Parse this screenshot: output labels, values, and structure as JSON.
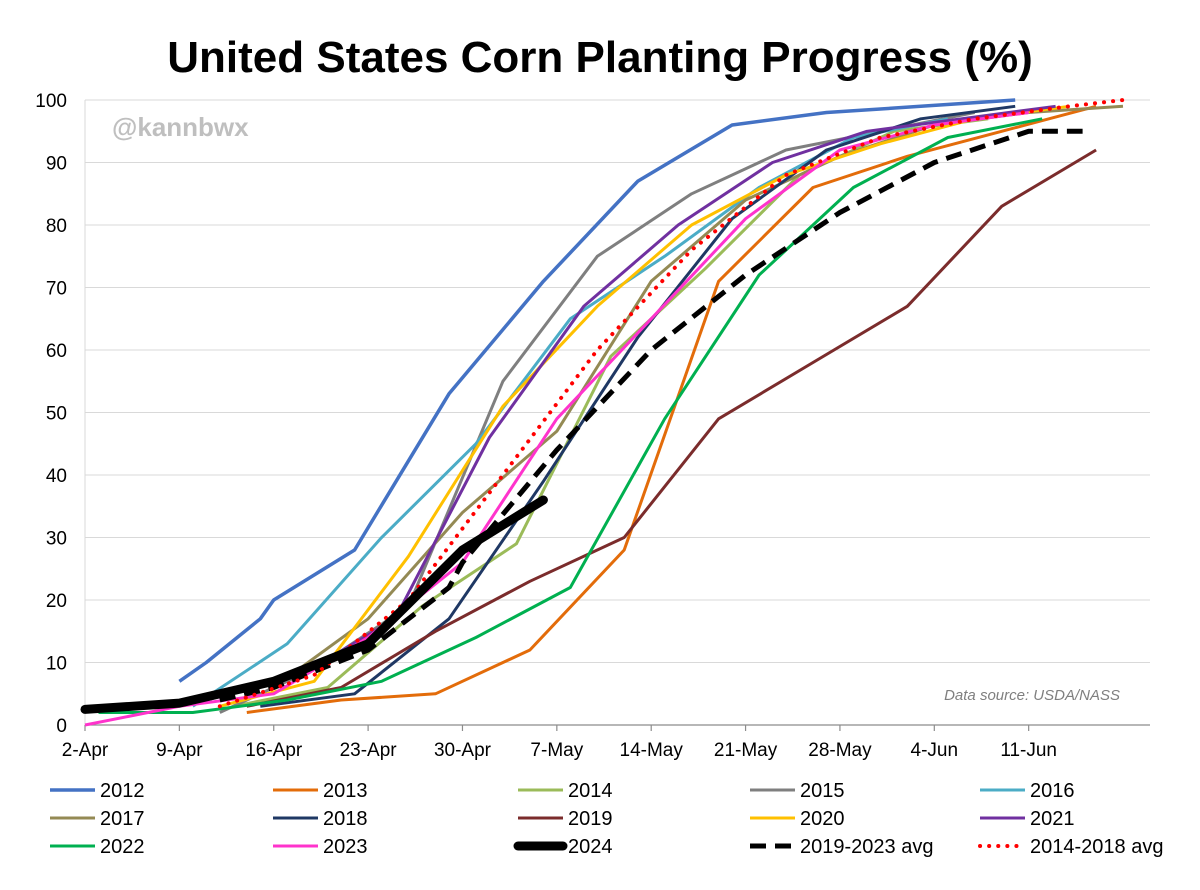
{
  "chart_data": {
    "type": "line",
    "title": "United States Corn Planting Progress (%)",
    "watermark": "@kannbwx",
    "source": "Data source: USDA/NASS",
    "xlabel": "",
    "ylabel": "",
    "x_axis": {
      "start": "2-Apr",
      "end": "20-Jun",
      "ticks": [
        "2-Apr",
        "9-Apr",
        "16-Apr",
        "23-Apr",
        "30-Apr",
        "7-May",
        "14-May",
        "21-May",
        "28-May",
        "4-Jun",
        "11-Jun"
      ]
    },
    "ylim": [
      0,
      100
    ],
    "yticks": [
      0,
      10,
      20,
      30,
      40,
      50,
      60,
      70,
      80,
      90,
      100
    ],
    "grid": true,
    "legend_position": "bottom",
    "series": [
      {
        "name": "2012",
        "color": "#4472c4",
        "style": "solid",
        "width": 3.5,
        "points": [
          [
            "9-Apr",
            7
          ],
          [
            "11-Apr",
            10
          ],
          [
            "15-Apr",
            17
          ],
          [
            "16-Apr",
            20
          ],
          [
            "22-Apr",
            28
          ],
          [
            "29-Apr",
            53
          ],
          [
            "6-May",
            71
          ],
          [
            "13-May",
            87
          ],
          [
            "20-May",
            96
          ],
          [
            "27-May",
            98
          ],
          [
            "3-Jun",
            99
          ],
          [
            "10-Jun",
            100
          ]
        ]
      },
      {
        "name": "2013",
        "color": "#e36c0a",
        "style": "solid",
        "width": 3,
        "points": [
          [
            "14-Apr",
            2
          ],
          [
            "21-Apr",
            4
          ],
          [
            "28-Apr",
            5
          ],
          [
            "5-May",
            12
          ],
          [
            "12-May",
            28
          ],
          [
            "19-May",
            71
          ],
          [
            "26-May",
            86
          ],
          [
            "2-Jun",
            91
          ],
          [
            "9-Jun",
            95
          ],
          [
            "16-Jun",
            99
          ]
        ]
      },
      {
        "name": "2014",
        "color": "#9bbb59",
        "style": "solid",
        "width": 3,
        "points": [
          [
            "13-Apr",
            3
          ],
          [
            "20-Apr",
            6
          ],
          [
            "27-Apr",
            19
          ],
          [
            "4-May",
            29
          ],
          [
            "11-May",
            59
          ],
          [
            "18-May",
            73
          ],
          [
            "25-May",
            88
          ],
          [
            "1-Jun",
            95
          ],
          [
            "8-Jun",
            97
          ]
        ]
      },
      {
        "name": "2015",
        "color": "#7f7f7f",
        "style": "solid",
        "width": 3,
        "points": [
          [
            "12-Apr",
            2
          ],
          [
            "19-Apr",
            9
          ],
          [
            "26-Apr",
            19
          ],
          [
            "3-May",
            55
          ],
          [
            "10-May",
            75
          ],
          [
            "17-May",
            85
          ],
          [
            "24-May",
            92
          ],
          [
            "31-May",
            95
          ],
          [
            "7-Jun",
            98
          ]
        ]
      },
      {
        "name": "2016",
        "color": "#4bacc6",
        "style": "solid",
        "width": 3,
        "points": [
          [
            "10-Apr",
            3
          ],
          [
            "17-Apr",
            13
          ],
          [
            "24-Apr",
            30
          ],
          [
            "1-May",
            45
          ],
          [
            "8-May",
            65
          ],
          [
            "15-May",
            75
          ],
          [
            "22-May",
            86
          ],
          [
            "29-May",
            94
          ],
          [
            "5-Jun",
            97
          ]
        ]
      },
      {
        "name": "2017",
        "color": "#948a54",
        "style": "solid",
        "width": 3,
        "points": [
          [
            "16-Apr",
            6
          ],
          [
            "23-Apr",
            17
          ],
          [
            "30-Apr",
            34
          ],
          [
            "7-May",
            47
          ],
          [
            "14-May",
            71
          ],
          [
            "21-May",
            84
          ],
          [
            "28-May",
            91
          ],
          [
            "4-Jun",
            96
          ],
          [
            "11-Jun",
            98
          ],
          [
            "18-Jun",
            99
          ]
        ]
      },
      {
        "name": "2018",
        "color": "#1f3864",
        "style": "solid",
        "width": 3,
        "points": [
          [
            "15-Apr",
            3
          ],
          [
            "22-Apr",
            5
          ],
          [
            "29-Apr",
            17
          ],
          [
            "6-May",
            39
          ],
          [
            "13-May",
            62
          ],
          [
            "20-May",
            81
          ],
          [
            "27-May",
            92
          ],
          [
            "3-Jun",
            97
          ],
          [
            "10-Jun",
            99
          ]
        ]
      },
      {
        "name": "2019",
        "color": "#7b2c2c",
        "style": "solid",
        "width": 3,
        "points": [
          [
            "14-Apr",
            3
          ],
          [
            "21-Apr",
            6
          ],
          [
            "28-Apr",
            15
          ],
          [
            "5-May",
            23
          ],
          [
            "12-May",
            30
          ],
          [
            "19-May",
            49
          ],
          [
            "26-May",
            58
          ],
          [
            "2-Jun",
            67
          ],
          [
            "9-Jun",
            83
          ],
          [
            "16-Jun",
            92
          ]
        ]
      },
      {
        "name": "2020",
        "color": "#ffc000",
        "style": "solid",
        "width": 3,
        "points": [
          [
            "12-Apr",
            3
          ],
          [
            "19-Apr",
            7
          ],
          [
            "26-Apr",
            27
          ],
          [
            "3-May",
            51
          ],
          [
            "10-May",
            67
          ],
          [
            "17-May",
            80
          ],
          [
            "24-May",
            88
          ],
          [
            "31-May",
            93
          ],
          [
            "7-Jun",
            97
          ],
          [
            "14-Jun",
            99
          ]
        ]
      },
      {
        "name": "2021",
        "color": "#7030a0",
        "style": "solid",
        "width": 3,
        "points": [
          [
            "11-Apr",
            4
          ],
          [
            "18-Apr",
            8
          ],
          [
            "25-Apr",
            17
          ],
          [
            "2-May",
            46
          ],
          [
            "9-May",
            67
          ],
          [
            "16-May",
            80
          ],
          [
            "23-May",
            90
          ],
          [
            "30-May",
            95
          ],
          [
            "6-Jun",
            97
          ],
          [
            "13-Jun",
            99
          ]
        ]
      },
      {
        "name": "2022",
        "color": "#00b050",
        "style": "solid",
        "width": 3,
        "points": [
          [
            "3-Apr",
            2
          ],
          [
            "10-Apr",
            2
          ],
          [
            "17-Apr",
            4
          ],
          [
            "24-Apr",
            7
          ],
          [
            "1-May",
            14
          ],
          [
            "8-May",
            22
          ],
          [
            "15-May",
            49
          ],
          [
            "22-May",
            72
          ],
          [
            "29-May",
            86
          ],
          [
            "5-Jun",
            94
          ],
          [
            "12-Jun",
            97
          ]
        ]
      },
      {
        "name": "2023",
        "color": "#ff33cc",
        "style": "solid",
        "width": 3,
        "points": [
          [
            "2-Apr",
            0
          ],
          [
            "9-Apr",
            3
          ],
          [
            "16-Apr",
            5
          ],
          [
            "23-Apr",
            14
          ],
          [
            "30-Apr",
            26
          ],
          [
            "7-May",
            49
          ],
          [
            "14-May",
            65
          ],
          [
            "21-May",
            81
          ],
          [
            "28-May",
            92
          ],
          [
            "4-Jun",
            96
          ],
          [
            "11-Jun",
            98
          ]
        ]
      },
      {
        "name": "2024",
        "color": "#000000",
        "style": "solid",
        "width": 9,
        "points": [
          [
            "2-Apr",
            2.5
          ],
          [
            "9-Apr",
            3.5
          ],
          [
            "16-Apr",
            7
          ],
          [
            "23-Apr",
            13
          ],
          [
            "30-Apr",
            28
          ],
          [
            "6-May",
            36
          ]
        ]
      },
      {
        "name": "2019-2023 avg",
        "color": "#000000",
        "style": "dashed",
        "width": 5,
        "points": [
          [
            "12-Apr",
            4
          ],
          [
            "16-Apr",
            6
          ],
          [
            "23-Apr",
            12
          ],
          [
            "29-Apr",
            22
          ],
          [
            "30-Apr",
            26
          ],
          [
            "7-May",
            44
          ],
          [
            "14-May",
            60
          ],
          [
            "21-May",
            72
          ],
          [
            "28-May",
            82
          ],
          [
            "4-Jun",
            90
          ],
          [
            "11-Jun",
            95
          ],
          [
            "15-Jun",
            95
          ]
        ]
      },
      {
        "name": "2014-2018 avg",
        "color": "#ff0000",
        "style": "dotted",
        "width": 4,
        "points": [
          [
            "12-Apr",
            3
          ],
          [
            "19-Apr",
            8
          ],
          [
            "26-Apr",
            20
          ],
          [
            "3-May",
            40
          ],
          [
            "10-May",
            60
          ],
          [
            "17-May",
            76
          ],
          [
            "24-May",
            88
          ],
          [
            "31-May",
            94
          ],
          [
            "7-Jun",
            97
          ],
          [
            "14-Jun",
            99
          ],
          [
            "18-Jun",
            100
          ]
        ]
      }
    ]
  }
}
